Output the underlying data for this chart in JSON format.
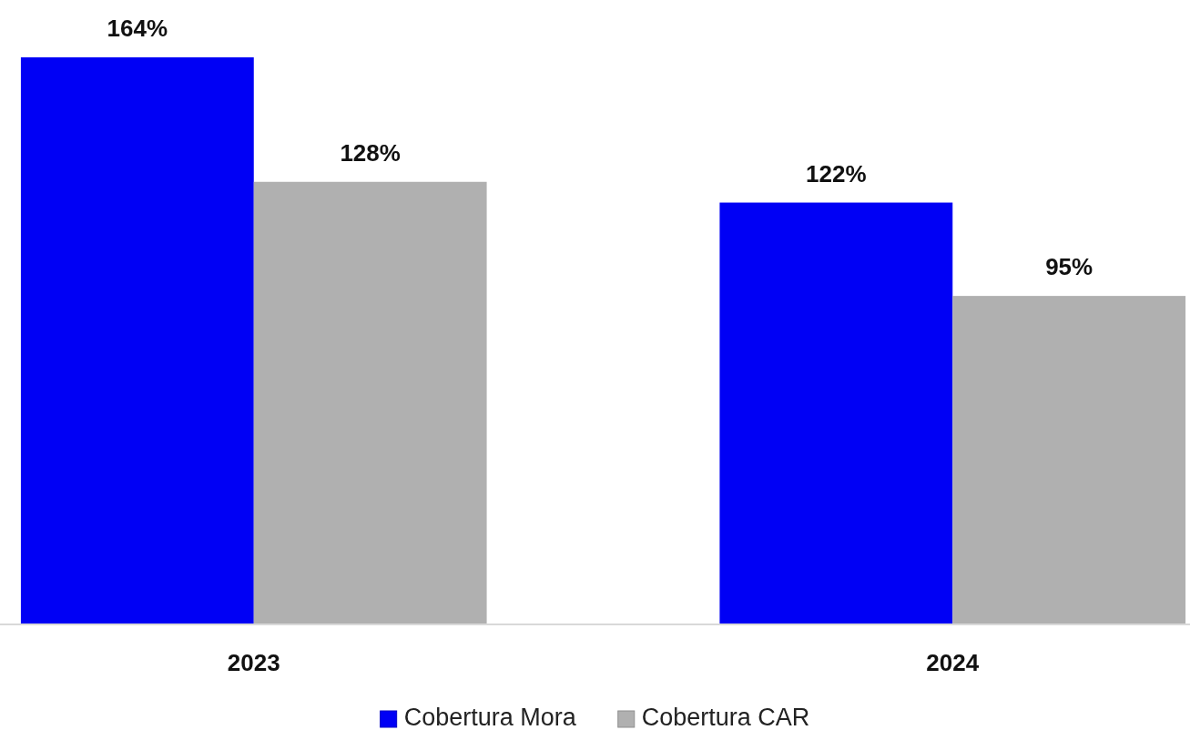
{
  "chart_data": {
    "type": "bar",
    "categories": [
      "2023",
      "2024"
    ],
    "series": [
      {
        "name": "Cobertura Mora",
        "color": "#0000f5",
        "values": [
          164,
          122
        ],
        "value_labels": [
          "164%",
          "122%"
        ]
      },
      {
        "name": "Cobertura CAR",
        "color": "#b0b0b0",
        "values": [
          128,
          95
        ],
        "value_labels": [
          "128%",
          "95%"
        ]
      }
    ],
    "legend": "bottom",
    "grid": false
  }
}
